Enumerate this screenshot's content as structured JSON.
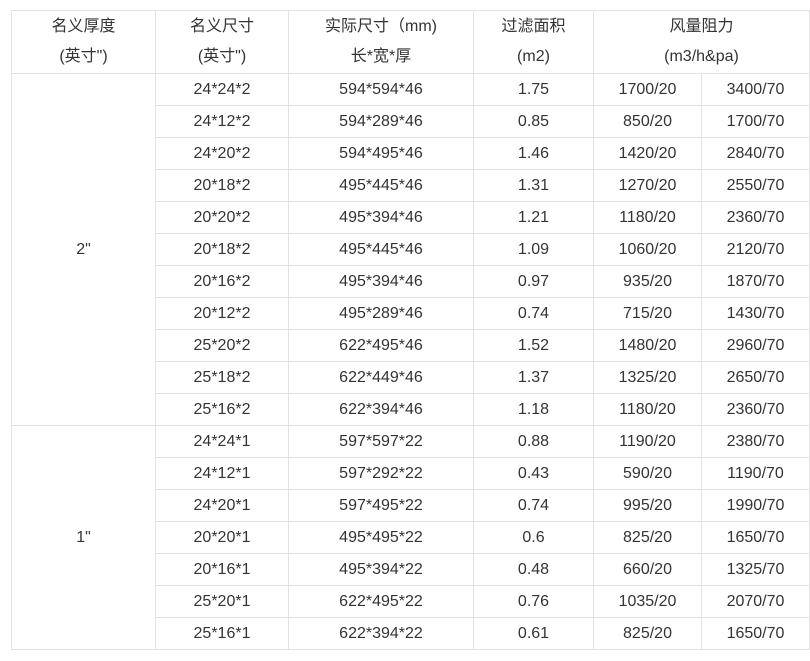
{
  "header": {
    "thickness": [
      "名义厚度",
      "(英寸\")"
    ],
    "nominal_size": [
      "名义尺寸",
      "(英寸\")"
    ],
    "actual_size": [
      "实际尺寸（mm)",
      "长*宽*厚"
    ],
    "filter_area": [
      "过滤面积",
      "(m2)"
    ],
    "airflow_resistance": [
      "风量阻力",
      "(m3/h&pa)"
    ]
  },
  "groups": [
    {
      "thickness": "2\"",
      "rows": [
        [
          "24*24*2",
          "594*594*46",
          "1.75",
          "1700/20",
          "3400/70"
        ],
        [
          "24*12*2",
          "594*289*46",
          "0.85",
          "850/20",
          "1700/70"
        ],
        [
          "24*20*2",
          "594*495*46",
          "1.46",
          "1420/20",
          "2840/70"
        ],
        [
          "20*18*2",
          "495*445*46",
          "1.31",
          "1270/20",
          "2550/70"
        ],
        [
          "20*20*2",
          "495*394*46",
          "1.21",
          "1180/20",
          "2360/70"
        ],
        [
          "20*18*2",
          "495*445*46",
          "1.09",
          "1060/20",
          "2120/70"
        ],
        [
          "20*16*2",
          "495*394*46",
          "0.97",
          "935/20",
          "1870/70"
        ],
        [
          "20*12*2",
          "495*289*46",
          "0.74",
          "715/20",
          "1430/70"
        ],
        [
          "25*20*2",
          "622*495*46",
          "1.52",
          "1480/20",
          "2960/70"
        ],
        [
          "25*18*2",
          "622*449*46",
          "1.37",
          "1325/20",
          "2650/70"
        ],
        [
          "25*16*2",
          "622*394*46",
          "1.18",
          "1180/20",
          "2360/70"
        ]
      ]
    },
    {
      "thickness": "1\"",
      "rows": [
        [
          "24*24*1",
          "597*597*22",
          "0.88",
          "1190/20",
          "2380/70"
        ],
        [
          "24*12*1",
          "597*292*22",
          "0.43",
          "590/20",
          "1190/70"
        ],
        [
          "24*20*1",
          "597*495*22",
          "0.74",
          "995/20",
          "1990/70"
        ],
        [
          "20*20*1",
          "495*495*22",
          "0.6",
          "825/20",
          "1650/70"
        ],
        [
          "20*16*1",
          "495*394*22",
          "0.48",
          "660/20",
          "1325/70"
        ],
        [
          "25*20*1",
          "622*495*22",
          "0.76",
          "1035/20",
          "2070/70"
        ],
        [
          "25*16*1",
          "622*394*22",
          "0.61",
          "825/20",
          "1650/70"
        ]
      ]
    }
  ]
}
